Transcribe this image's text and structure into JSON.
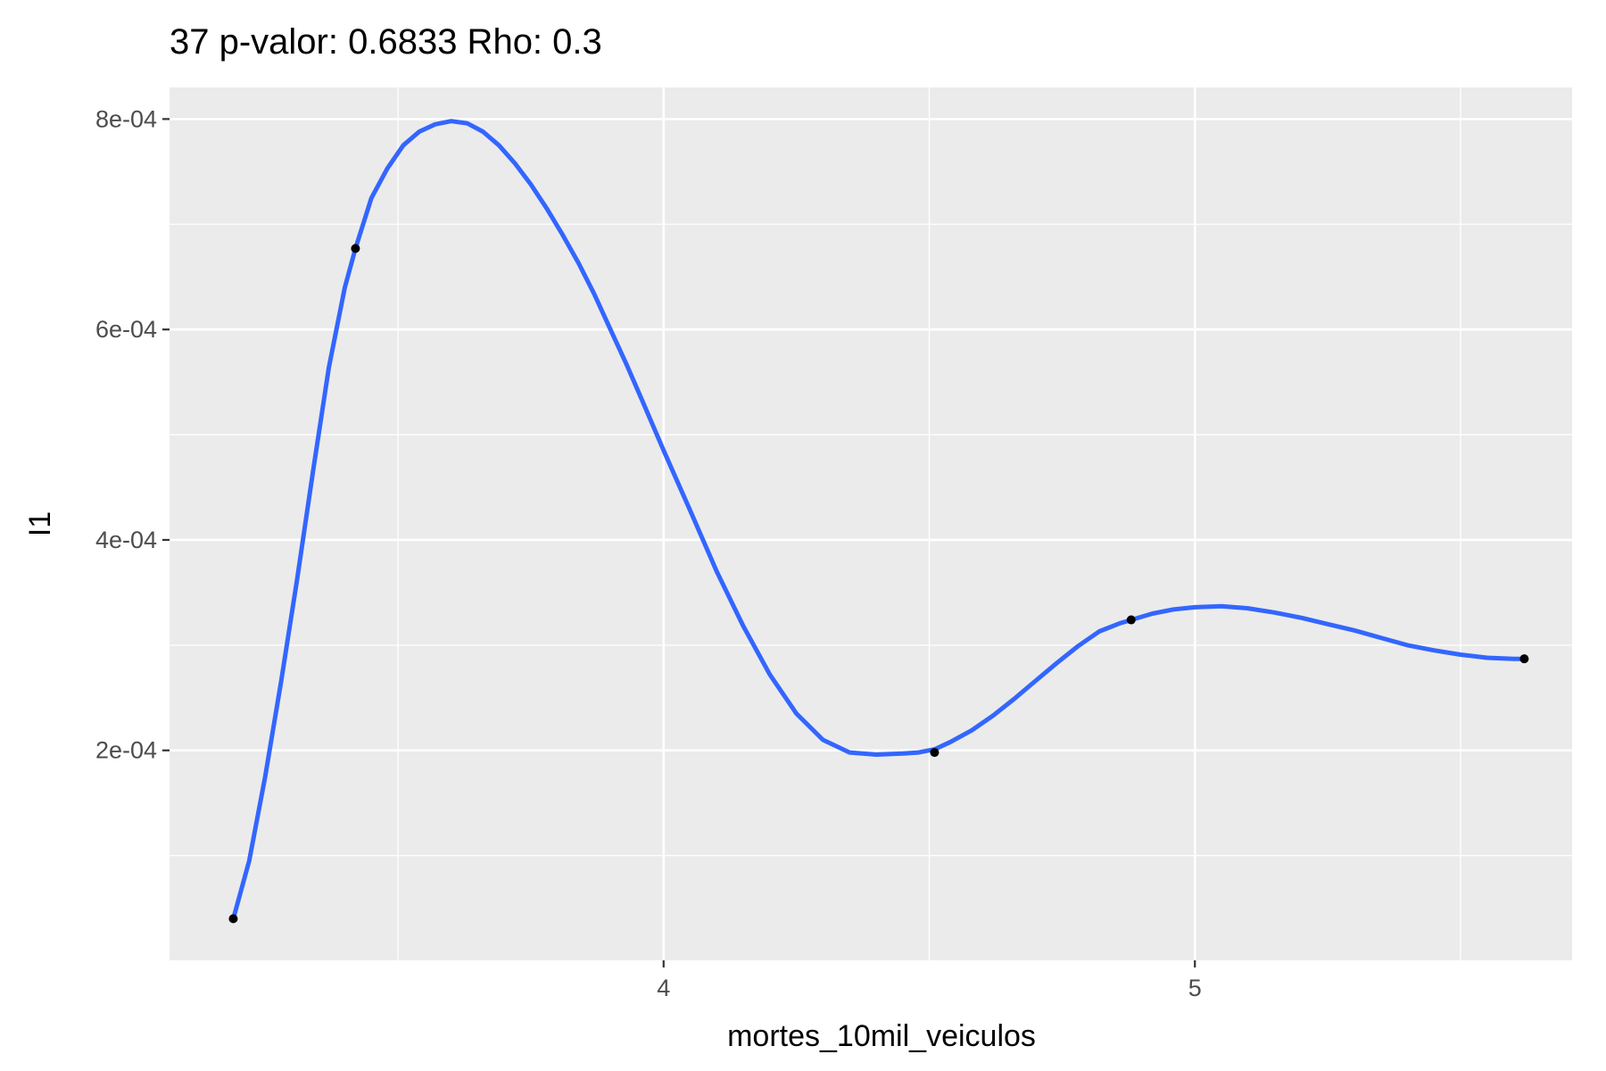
{
  "chart_data": {
    "type": "line",
    "title": "37 p-valor: 0.6833 Rho: 0.3",
    "xlabel": "mortes_10mil_veiculos",
    "ylabel": "I1",
    "xlim": [
      3.07,
      5.71
    ],
    "ylim": [
      4.6e-07,
      0.00083
    ],
    "x_ticks": [
      {
        "value": 4,
        "label": "4"
      },
      {
        "value": 5,
        "label": "5"
      }
    ],
    "x_minor_ticks": [
      3.5,
      4.5,
      5.5
    ],
    "y_ticks": [
      {
        "value": 0.0002,
        "label": "2e-04"
      },
      {
        "value": 0.0004,
        "label": "4e-04"
      },
      {
        "value": 0.0006,
        "label": "6e-04"
      },
      {
        "value": 0.0008,
        "label": "8e-04"
      }
    ],
    "y_minor_ticks": [
      0.0001,
      0.0003,
      0.0005,
      0.0007
    ],
    "grid": true,
    "points": [
      {
        "x": 3.19,
        "y": 4e-05
      },
      {
        "x": 3.42,
        "y": 0.000677
      },
      {
        "x": 4.51,
        "y": 0.000198
      },
      {
        "x": 4.88,
        "y": 0.000324
      },
      {
        "x": 5.62,
        "y": 0.000287
      }
    ],
    "series": [
      {
        "type": "smooth",
        "x": [
          3.19,
          3.22,
          3.25,
          3.28,
          3.31,
          3.34,
          3.37,
          3.4,
          3.42,
          3.45,
          3.48,
          3.51,
          3.54,
          3.57,
          3.6,
          3.63,
          3.66,
          3.69,
          3.72,
          3.75,
          3.78,
          3.81,
          3.84,
          3.87,
          3.9,
          3.93,
          3.96,
          4.0,
          4.05,
          4.1,
          4.15,
          4.2,
          4.25,
          4.3,
          4.35,
          4.4,
          4.45,
          4.48,
          4.51,
          4.54,
          4.58,
          4.62,
          4.66,
          4.7,
          4.74,
          4.78,
          4.82,
          4.86,
          4.88,
          4.92,
          4.96,
          5.0,
          5.05,
          5.1,
          5.15,
          5.2,
          5.25,
          5.3,
          5.35,
          5.4,
          5.45,
          5.5,
          5.55,
          5.6,
          5.62
        ],
        "y": [
          4e-05,
          9.5e-05,
          0.000175,
          0.000265,
          0.000362,
          0.000465,
          0.000564,
          0.00064,
          0.000677,
          0.000725,
          0.000753,
          0.000775,
          0.000788,
          0.000795,
          0.000798,
          0.000796,
          0.000788,
          0.000775,
          0.000758,
          0.000738,
          0.000715,
          0.00069,
          0.000663,
          0.000633,
          0.0006,
          0.000567,
          0.000532,
          0.000485,
          0.000428,
          0.00037,
          0.000318,
          0.000272,
          0.000235,
          0.00021,
          0.000198,
          0.000196,
          0.000197,
          0.000198,
          0.000201,
          0.000208,
          0.000219,
          0.000233,
          0.000249,
          0.000266,
          0.000283,
          0.000299,
          0.000313,
          0.000321,
          0.000324,
          0.00033,
          0.000334,
          0.000336,
          0.000337,
          0.000335,
          0.000331,
          0.000326,
          0.00032,
          0.000314,
          0.000307,
          0.0003,
          0.000295,
          0.000291,
          0.000288,
          0.000287,
          0.000287
        ]
      }
    ],
    "colors": {
      "panel_bg": "#EBEBEB",
      "grid": "#FFFFFF",
      "line": "#3366FF",
      "point": "#000000",
      "tick": "#333333"
    }
  }
}
